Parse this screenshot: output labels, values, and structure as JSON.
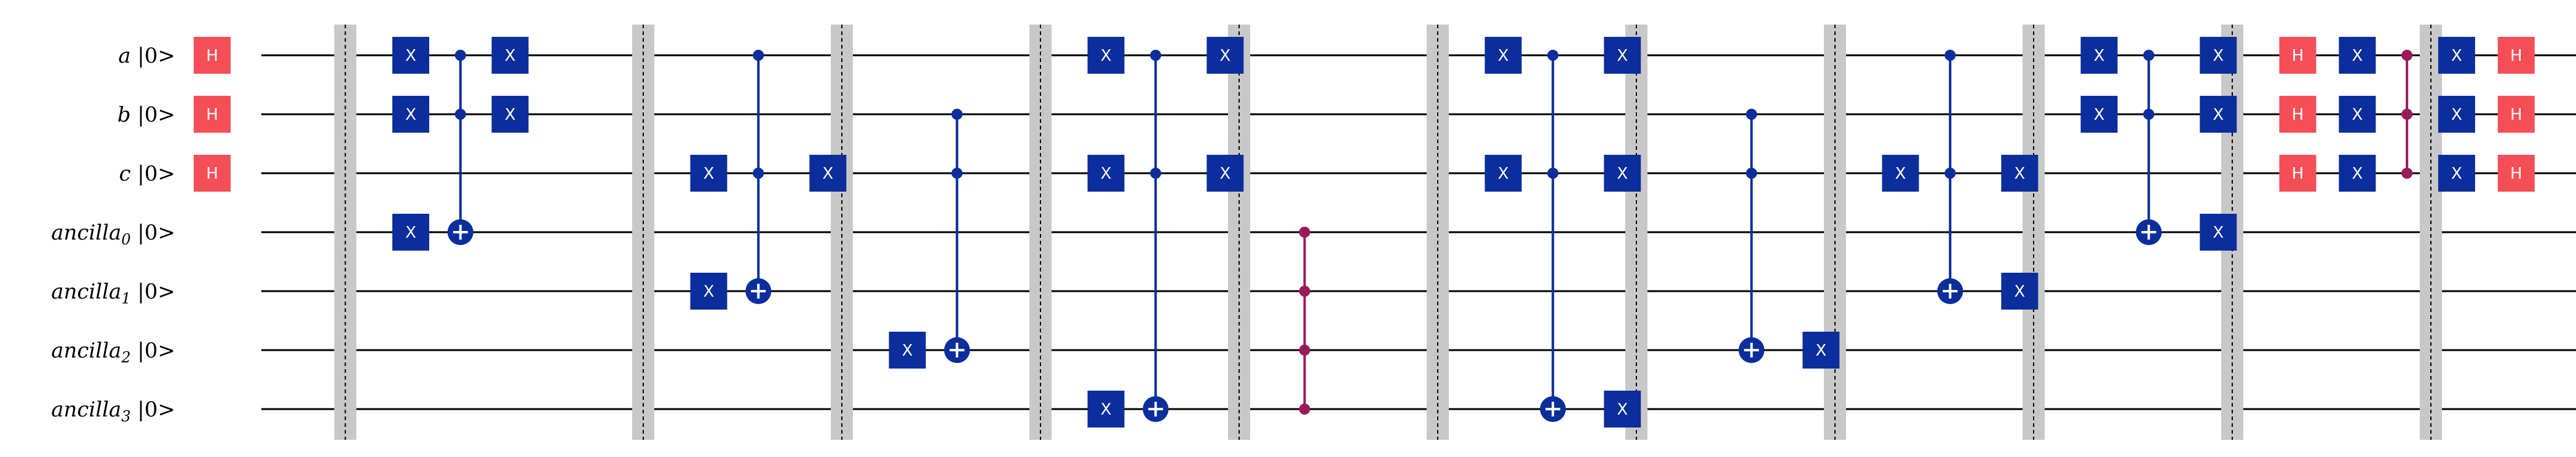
{
  "qubits": [
    {
      "name": "a",
      "sub": "",
      "ket": "|0>"
    },
    {
      "name": "b",
      "sub": "",
      "ket": "|0>"
    },
    {
      "name": "c",
      "sub": "",
      "ket": "|0>"
    },
    {
      "name": "ancilla",
      "sub": "0",
      "ket": "|0>"
    },
    {
      "name": "ancilla",
      "sub": "1",
      "ket": "|0>"
    },
    {
      "name": "ancilla",
      "sub": "2",
      "ket": "|0>"
    },
    {
      "name": "ancilla",
      "sub": "3",
      "ket": "|0>"
    }
  ],
  "colors": {
    "x_gate": "#0b2e9c",
    "h_gate": "#f44e57",
    "cz": "#9a1b5c",
    "barrier": "#c8c8c8",
    "wire": "#000000",
    "gate_text": "#ffffff"
  },
  "barriers": [
    1,
    4,
    6,
    8,
    10,
    12,
    14,
    16,
    18,
    20,
    22,
    24
  ],
  "gates": [
    {
      "type": "H",
      "col": 0,
      "q": 0,
      "label": "H"
    },
    {
      "type": "H",
      "col": 0,
      "q": 1,
      "label": "H"
    },
    {
      "type": "H",
      "col": 0,
      "q": 2,
      "label": "H"
    },
    {
      "type": "X",
      "col": 2,
      "q": 0,
      "label": "X"
    },
    {
      "type": "X",
      "col": 2,
      "q": 1,
      "label": "X"
    },
    {
      "type": "X",
      "col": 2,
      "q": 3,
      "label": "X"
    },
    {
      "type": "CX",
      "col": 2.5,
      "controls": [
        0,
        1
      ],
      "target": 3
    },
    {
      "type": "X",
      "col": 3,
      "q": 0,
      "label": "X"
    },
    {
      "type": "X",
      "col": 3,
      "q": 1,
      "label": "X"
    },
    {
      "type": "X",
      "col": 5,
      "q": 2,
      "label": "X"
    },
    {
      "type": "X",
      "col": 5,
      "q": 4,
      "label": "X"
    },
    {
      "type": "CX",
      "col": 5.5,
      "controls": [
        0,
        2
      ],
      "target": 4
    },
    {
      "type": "X",
      "col": 6.2,
      "q": 2,
      "label": "X"
    },
    {
      "type": "X",
      "col": 7,
      "q": 5,
      "label": "X"
    },
    {
      "type": "CX",
      "col": 7.5,
      "controls": [
        1,
        2
      ],
      "target": 5
    },
    {
      "type": "X",
      "col": 9,
      "q": 0,
      "label": "X"
    },
    {
      "type": "X",
      "col": 9,
      "q": 2,
      "label": "X"
    },
    {
      "type": "X",
      "col": 9,
      "q": 6,
      "label": "X"
    },
    {
      "type": "CX",
      "col": 9.5,
      "controls": [
        0,
        2
      ],
      "target": 6
    },
    {
      "type": "X",
      "col": 10.2,
      "q": 0,
      "label": "X"
    },
    {
      "type": "X",
      "col": 10.2,
      "q": 2,
      "label": "X"
    },
    {
      "type": "CZ",
      "col": 11,
      "qubits": [
        3,
        4,
        5,
        6
      ]
    },
    {
      "type": "X",
      "col": 13,
      "q": 0,
      "label": "X"
    },
    {
      "type": "X",
      "col": 13,
      "q": 2,
      "label": "X"
    },
    {
      "type": "CX",
      "col": 13.5,
      "controls": [
        0,
        2
      ],
      "target": 6
    },
    {
      "type": "X",
      "col": 14.2,
      "q": 0,
      "label": "X"
    },
    {
      "type": "X",
      "col": 14.2,
      "q": 2,
      "label": "X"
    },
    {
      "type": "X",
      "col": 14.2,
      "q": 6,
      "label": "X"
    },
    {
      "type": "CX",
      "col": 15.5,
      "controls": [
        1,
        2
      ],
      "target": 5
    },
    {
      "type": "X",
      "col": 16.2,
      "q": 5,
      "label": "X"
    },
    {
      "type": "X",
      "col": 17,
      "q": 2,
      "label": "X"
    },
    {
      "type": "CX",
      "col": 17.5,
      "controls": [
        0,
        2
      ],
      "target": 4
    },
    {
      "type": "X",
      "col": 18.2,
      "q": 2,
      "label": "X"
    },
    {
      "type": "X",
      "col": 18.2,
      "q": 4,
      "label": "X"
    },
    {
      "type": "X",
      "col": 19,
      "q": 0,
      "label": "X"
    },
    {
      "type": "X",
      "col": 19,
      "q": 1,
      "label": "X"
    },
    {
      "type": "CX",
      "col": 19.5,
      "controls": [
        0,
        1
      ],
      "target": 3
    },
    {
      "type": "X",
      "col": 20.2,
      "q": 0,
      "label": "X"
    },
    {
      "type": "X",
      "col": 20.2,
      "q": 1,
      "label": "X"
    },
    {
      "type": "X",
      "col": 20.2,
      "q": 3,
      "label": "X"
    },
    {
      "type": "H",
      "col": 21,
      "q": 0,
      "label": "H"
    },
    {
      "type": "H",
      "col": 21,
      "q": 1,
      "label": "H"
    },
    {
      "type": "H",
      "col": 21,
      "q": 2,
      "label": "H"
    },
    {
      "type": "X",
      "col": 21.6,
      "q": 0,
      "label": "X"
    },
    {
      "type": "X",
      "col": 21.6,
      "q": 1,
      "label": "X"
    },
    {
      "type": "X",
      "col": 21.6,
      "q": 2,
      "label": "X"
    },
    {
      "type": "CZ",
      "col": 22.1,
      "qubits": [
        0,
        1,
        2
      ]
    },
    {
      "type": "X",
      "col": 22.6,
      "q": 0,
      "label": "X"
    },
    {
      "type": "X",
      "col": 22.6,
      "q": 1,
      "label": "X"
    },
    {
      "type": "X",
      "col": 22.6,
      "q": 2,
      "label": "X"
    },
    {
      "type": "H",
      "col": 23.2,
      "q": 0,
      "label": "H"
    },
    {
      "type": "H",
      "col": 23.2,
      "q": 1,
      "label": "H"
    },
    {
      "type": "H",
      "col": 23.2,
      "q": 2,
      "label": "H"
    }
  ]
}
